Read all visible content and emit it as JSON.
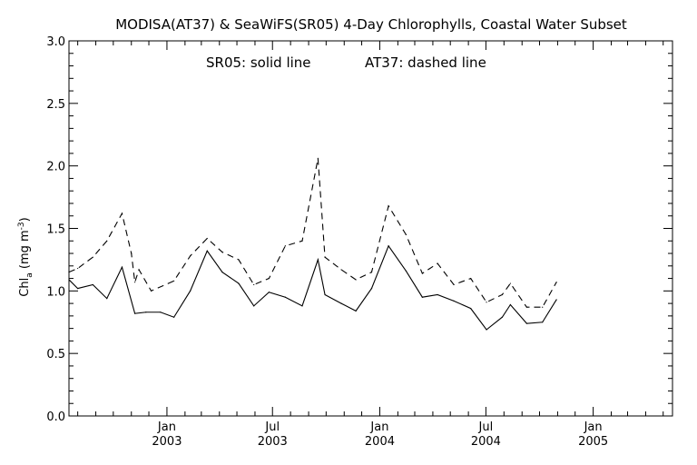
{
  "chart_data": {
    "type": "line",
    "title": "MODISA(AT37) & SeaWiFS(SR05) 4-Day Chlorophylls, Coastal Water Subset",
    "annotation_left": "SR05: solid line",
    "annotation_right": "AT37: dashed line",
    "ylabel": {
      "main": "Chl",
      "sub": "a",
      "units_open": " (mg m",
      "sup": "-3",
      "units_close": ")"
    },
    "xlabel": "",
    "xlim": [
      "2002-07-17",
      "2005-05-17"
    ],
    "ylim": [
      0.0,
      3.0
    ],
    "yticks": [
      {
        "value": 0.0,
        "label": "0.0"
      },
      {
        "value": 0.5,
        "label": "0.5"
      },
      {
        "value": 1.0,
        "label": "1.0"
      },
      {
        "value": 1.5,
        "label": "1.5"
      },
      {
        "value": 2.0,
        "label": "2.0"
      },
      {
        "value": 2.5,
        "label": "2.5"
      },
      {
        "value": 3.0,
        "label": "3.0"
      }
    ],
    "xticks": [
      {
        "date": "2003-01-01",
        "month": "Jan",
        "year": "2003"
      },
      {
        "date": "2003-07-01",
        "month": "Jul",
        "year": "2003"
      },
      {
        "date": "2004-01-01",
        "month": "Jan",
        "year": "2004"
      },
      {
        "date": "2004-07-01",
        "month": "Jul",
        "year": "2004"
      },
      {
        "date": "2005-01-01",
        "month": "Jan",
        "year": "2005"
      }
    ],
    "grid": false,
    "series": [
      {
        "name": "SR05",
        "style": "solid",
        "color": "#000000",
        "points": [
          [
            "2002-07-17",
            1.09
          ],
          [
            "2002-08-01",
            1.02
          ],
          [
            "2002-08-27",
            1.05
          ],
          [
            "2002-09-20",
            0.94
          ],
          [
            "2002-10-16",
            1.19
          ],
          [
            "2002-11-07",
            0.82
          ],
          [
            "2002-11-26",
            0.83
          ],
          [
            "2002-12-21",
            0.83
          ],
          [
            "2003-01-13",
            0.79
          ],
          [
            "2003-02-10",
            1.0
          ],
          [
            "2003-03-11",
            1.32
          ],
          [
            "2003-04-06",
            1.15
          ],
          [
            "2003-05-04",
            1.06
          ],
          [
            "2003-05-30",
            0.88
          ],
          [
            "2003-06-25",
            0.99
          ],
          [
            "2003-07-23",
            0.95
          ],
          [
            "2003-08-21",
            0.88
          ],
          [
            "2003-09-17",
            1.25
          ],
          [
            "2003-09-29",
            0.97
          ],
          [
            "2003-10-27",
            0.9
          ],
          [
            "2003-11-21",
            0.84
          ],
          [
            "2003-12-18",
            1.02
          ],
          [
            "2004-01-16",
            1.36
          ],
          [
            "2004-02-15",
            1.16
          ],
          [
            "2004-03-14",
            0.95
          ],
          [
            "2004-04-09",
            0.97
          ],
          [
            "2004-05-07",
            0.92
          ],
          [
            "2004-06-05",
            0.86
          ],
          [
            "2004-07-02",
            0.69
          ],
          [
            "2004-07-29",
            0.79
          ],
          [
            "2004-08-12",
            0.89
          ],
          [
            "2004-09-09",
            0.74
          ],
          [
            "2004-10-06",
            0.75
          ],
          [
            "2004-10-30",
            0.93
          ]
        ]
      },
      {
        "name": "AT37",
        "style": "dashed",
        "color": "#000000",
        "points": [
          [
            "2002-07-17",
            1.15
          ],
          [
            "2002-08-01",
            1.18
          ],
          [
            "2002-08-27",
            1.27
          ],
          [
            "2002-09-20",
            1.4
          ],
          [
            "2002-10-16",
            1.62
          ],
          [
            "2002-11-01",
            1.3
          ],
          [
            "2002-11-07",
            1.07
          ],
          [
            "2002-11-14",
            1.17
          ],
          [
            "2002-12-05",
            1.0
          ],
          [
            "2003-01-13",
            1.08
          ],
          [
            "2003-02-10",
            1.28
          ],
          [
            "2003-03-11",
            1.42
          ],
          [
            "2003-04-06",
            1.31
          ],
          [
            "2003-05-04",
            1.25
          ],
          [
            "2003-05-30",
            1.05
          ],
          [
            "2003-06-25",
            1.1
          ],
          [
            "2003-07-23",
            1.36
          ],
          [
            "2003-08-21",
            1.4
          ],
          [
            "2003-09-17",
            2.06
          ],
          [
            "2003-09-29",
            1.27
          ],
          [
            "2003-10-27",
            1.17
          ],
          [
            "2003-11-21",
            1.09
          ],
          [
            "2003-12-18",
            1.15
          ],
          [
            "2004-01-16",
            1.68
          ],
          [
            "2004-02-15",
            1.45
          ],
          [
            "2004-03-14",
            1.14
          ],
          [
            "2004-04-09",
            1.22
          ],
          [
            "2004-05-07",
            1.05
          ],
          [
            "2004-06-05",
            1.1
          ],
          [
            "2004-07-02",
            0.91
          ],
          [
            "2004-07-29",
            0.97
          ],
          [
            "2004-08-12",
            1.06
          ],
          [
            "2004-09-09",
            0.87
          ],
          [
            "2004-10-06",
            0.87
          ],
          [
            "2004-10-30",
            1.07
          ]
        ]
      }
    ]
  }
}
